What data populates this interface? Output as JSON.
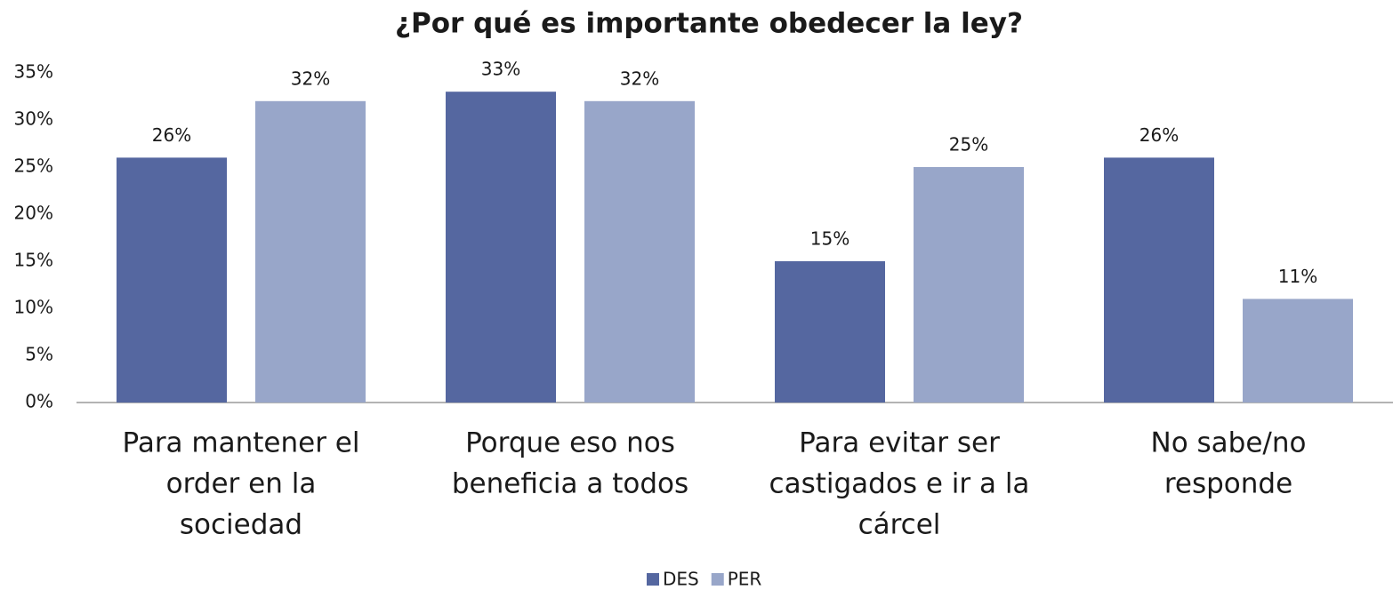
{
  "chart_data": {
    "type": "bar",
    "title": "¿Por qué es importante obedecer la ley?",
    "categories": [
      [
        "Para mantener el",
        "order en la",
        "sociedad"
      ],
      [
        "Porque eso nos",
        "beneficia a todos"
      ],
      [
        "Para evitar ser",
        "castigados e ir a la",
        "cárcel"
      ],
      [
        "No sabe/no",
        "responde"
      ]
    ],
    "series": [
      {
        "name": "DES",
        "color": "#5567a0",
        "values": [
          26,
          33,
          15,
          26
        ],
        "value_labels": [
          "26%",
          "33%",
          "15%",
          "26%"
        ]
      },
      {
        "name": "PER",
        "color": "#98a6c9",
        "values": [
          32,
          32,
          25,
          11
        ],
        "value_labels": [
          "32%",
          "32%",
          "25%",
          "11%"
        ]
      }
    ],
    "ylim": [
      0,
      35
    ],
    "yticks": [
      {
        "value": 0,
        "label": "0%"
      },
      {
        "value": 5,
        "label": "5%"
      },
      {
        "value": 10,
        "label": "10%"
      },
      {
        "value": 15,
        "label": "15%"
      },
      {
        "value": 20,
        "label": "20%"
      },
      {
        "value": 25,
        "label": "25%"
      },
      {
        "value": 30,
        "label": "30%"
      },
      {
        "value": 35,
        "label": "35%"
      }
    ],
    "grid": false,
    "legend": "bottom"
  }
}
